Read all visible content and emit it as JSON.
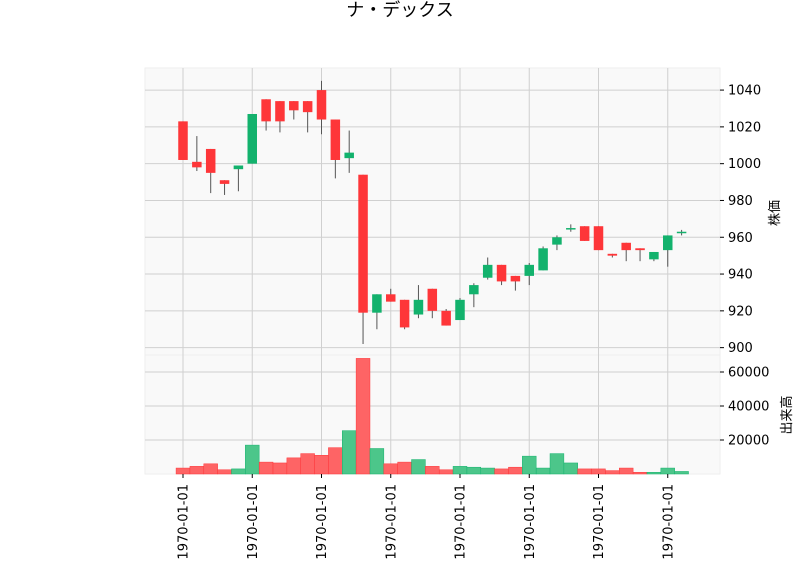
{
  "chart_data": {
    "type": "candlestick",
    "title": "ナ・デックス",
    "price_ylabel": "株価",
    "volume_ylabel": "出来高",
    "price_ylim": [
      896,
      1052
    ],
    "volume_ylim": [
      0,
      70000
    ],
    "price_yticks": [
      900,
      920,
      940,
      960,
      980,
      1000,
      1020,
      1040
    ],
    "volume_yticks": [
      20000,
      40000,
      60000
    ],
    "xtick_labels": [
      "1970-01-01",
      "1970-01-01",
      "1970-01-01",
      "1970-01-01",
      "1970-01-01",
      "1970-01-01",
      "1970-01-01",
      "1970-01-01"
    ],
    "xtick_indices": [
      0,
      5,
      10,
      15,
      20,
      25,
      30,
      35
    ],
    "up_color": "#13b26d",
    "down_color": "#fe3639",
    "volume_up_color": "#4cc68a",
    "volume_down_color": "#fe6465",
    "candles": [
      {
        "open": 1023,
        "high": 1023,
        "low": 1002,
        "close": 1002,
        "volume": 3500
      },
      {
        "open": 1001,
        "high": 1015,
        "low": 996,
        "close": 998,
        "volume": 4500
      },
      {
        "open": 1008,
        "high": 1008,
        "low": 984,
        "close": 995,
        "volume": 6000
      },
      {
        "open": 991,
        "high": 991,
        "low": 983,
        "close": 989,
        "volume": 2500
      },
      {
        "open": 997,
        "high": 999,
        "low": 985,
        "close": 999,
        "volume": 3000
      },
      {
        "open": 1000,
        "high": 1027,
        "low": 1000,
        "close": 1027,
        "volume": 17000
      },
      {
        "open": 1035,
        "high": 1035,
        "low": 1018,
        "close": 1023,
        "volume": 7000
      },
      {
        "open": 1034,
        "high": 1034,
        "low": 1017,
        "close": 1023,
        "volume": 6500
      },
      {
        "open": 1034,
        "high": 1034,
        "low": 1024,
        "close": 1029,
        "volume": 9500
      },
      {
        "open": 1034,
        "high": 1034,
        "low": 1017,
        "close": 1028,
        "volume": 12000
      },
      {
        "open": 1040,
        "high": 1045,
        "low": 1016,
        "close": 1024,
        "volume": 11000
      },
      {
        "open": 1024,
        "high": 1024,
        "low": 992,
        "close": 1002,
        "volume": 15500
      },
      {
        "open": 1003,
        "high": 1018,
        "low": 995,
        "close": 1006,
        "volume": 25500
      },
      {
        "open": 994,
        "high": 994,
        "low": 902,
        "close": 919,
        "volume": 68000
      },
      {
        "open": 919,
        "high": 929,
        "low": 910,
        "close": 929,
        "volume": 15000
      },
      {
        "open": 929,
        "high": 932,
        "low": 925,
        "close": 925,
        "volume": 6000
      },
      {
        "open": 926,
        "high": 926,
        "low": 910,
        "close": 911,
        "volume": 7000
      },
      {
        "open": 918,
        "high": 934,
        "low": 916,
        "close": 926,
        "volume": 8500
      },
      {
        "open": 932,
        "high": 932,
        "low": 916,
        "close": 920,
        "volume": 4500
      },
      {
        "open": 920,
        "high": 921,
        "low": 912,
        "close": 912,
        "volume": 2500
      },
      {
        "open": 915,
        "high": 927,
        "low": 915,
        "close": 926,
        "volume": 4500
      },
      {
        "open": 929,
        "high": 935,
        "low": 922,
        "close": 934,
        "volume": 4000
      },
      {
        "open": 938,
        "high": 949,
        "low": 937,
        "close": 945,
        "volume": 3500
      },
      {
        "open": 945,
        "high": 945,
        "low": 934,
        "close": 936,
        "volume": 3000
      },
      {
        "open": 939,
        "high": 939,
        "low": 931,
        "close": 936,
        "volume": 4000
      },
      {
        "open": 939,
        "high": 946,
        "low": 934,
        "close": 945,
        "volume": 10500
      },
      {
        "open": 942,
        "high": 955,
        "low": 942,
        "close": 954,
        "volume": 3500
      },
      {
        "open": 956,
        "high": 961,
        "low": 953,
        "close": 960,
        "volume": 12000
      },
      {
        "open": 965,
        "high": 967,
        "low": 963,
        "close": 965,
        "volume": 6500
      },
      {
        "open": 966,
        "high": 966,
        "low": 958,
        "close": 958,
        "volume": 3000
      },
      {
        "open": 966,
        "high": 966,
        "low": 953,
        "close": 953,
        "volume": 3000
      },
      {
        "open": 951,
        "high": 951,
        "low": 949,
        "close": 950,
        "volume": 2000
      },
      {
        "open": 957,
        "high": 957,
        "low": 947,
        "close": 953,
        "volume": 3500
      },
      {
        "open": 954,
        "high": 954,
        "low": 947,
        "close": 953,
        "volume": 1000
      },
      {
        "open": 948,
        "high": 952,
        "low": 947,
        "close": 952,
        "volume": 1000
      },
      {
        "open": 953,
        "high": 961,
        "low": 944,
        "close": 961,
        "volume": 3500
      },
      {
        "open": 963,
        "high": 964,
        "low": 961,
        "close": 963,
        "volume": 1500
      }
    ]
  }
}
